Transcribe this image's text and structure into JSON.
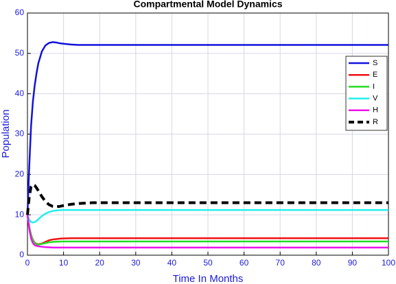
{
  "chart_data": {
    "type": "line",
    "title": "Compartmental Model Dynamics",
    "xlabel": "Time In Months",
    "ylabel": "Population",
    "x": [
      0,
      0.5,
      1,
      1.5,
      2,
      2.5,
      3,
      4,
      5,
      6,
      7,
      8,
      9,
      10,
      12,
      14,
      16,
      18,
      20,
      25,
      30,
      40,
      50,
      60,
      70,
      80,
      90,
      100
    ],
    "series": [
      {
        "name": "S",
        "color": "#1111dd",
        "values": [
          10,
          22,
          32,
          38,
          42,
          45,
          47.5,
          50.5,
          52,
          52.6,
          52.8,
          52.7,
          52.5,
          52.4,
          52.2,
          52.1,
          52.1,
          52.1,
          52.1,
          52.1,
          52.1,
          52.1,
          52.1,
          52.1,
          52.1,
          52.1,
          52.1,
          52.1
        ]
      },
      {
        "name": "E",
        "color": "#ee1111",
        "values": [
          10,
          7,
          5,
          3.8,
          3.1,
          2.8,
          2.7,
          2.9,
          3.3,
          3.7,
          3.9,
          4.0,
          4.1,
          4.15,
          4.2,
          4.2,
          4.2,
          4.2,
          4.2,
          4.2,
          4.2,
          4.2,
          4.2,
          4.2,
          4.2,
          4.2,
          4.2,
          4.2
        ]
      },
      {
        "name": "I",
        "color": "#22dd22",
        "values": [
          10,
          7,
          5,
          3.7,
          3.0,
          2.7,
          2.6,
          2.8,
          3.0,
          3.2,
          3.3,
          3.35,
          3.38,
          3.4,
          3.4,
          3.4,
          3.4,
          3.4,
          3.4,
          3.4,
          3.4,
          3.4,
          3.4,
          3.4,
          3.4,
          3.4,
          3.4,
          3.4
        ]
      },
      {
        "name": "V",
        "color": "#22eeee",
        "values": [
          10,
          8.8,
          8.2,
          8.1,
          8.2,
          8.5,
          8.9,
          9.7,
          10.3,
          10.7,
          10.95,
          11.1,
          11.15,
          11.2,
          11.2,
          11.2,
          11.2,
          11.2,
          11.2,
          11.2,
          11.2,
          11.2,
          11.2,
          11.2,
          11.2,
          11.2,
          11.2,
          11.2
        ]
      },
      {
        "name": "H",
        "color": "#ee11ee",
        "values": [
          10,
          6.5,
          4.2,
          3.0,
          2.5,
          2.3,
          2.2,
          2.1,
          2.0,
          1.95,
          1.9,
          1.9,
          1.9,
          1.9,
          1.9,
          1.9,
          1.9,
          1.9,
          1.9,
          1.9,
          1.9,
          1.9,
          1.9,
          1.9,
          1.9,
          1.9,
          1.9,
          1.9
        ]
      },
      {
        "name": "R",
        "color": "#000000",
        "dashed": true,
        "values": [
          10,
          14.5,
          17,
          17.5,
          17.3,
          16.7,
          16,
          14.5,
          13.3,
          12.5,
          12.1,
          12,
          12.1,
          12.3,
          12.6,
          12.8,
          12.9,
          13,
          13,
          13,
          13,
          13,
          13,
          13,
          13,
          13,
          13,
          13
        ]
      }
    ],
    "xlim": [
      0,
      100
    ],
    "xticks": [
      0,
      10,
      20,
      30,
      40,
      50,
      60,
      70,
      80,
      90,
      100
    ],
    "ylim": [
      0,
      60
    ],
    "yticks": [
      0,
      10,
      20,
      30,
      40,
      50,
      60
    ],
    "grid": true,
    "legend": "northeast"
  }
}
